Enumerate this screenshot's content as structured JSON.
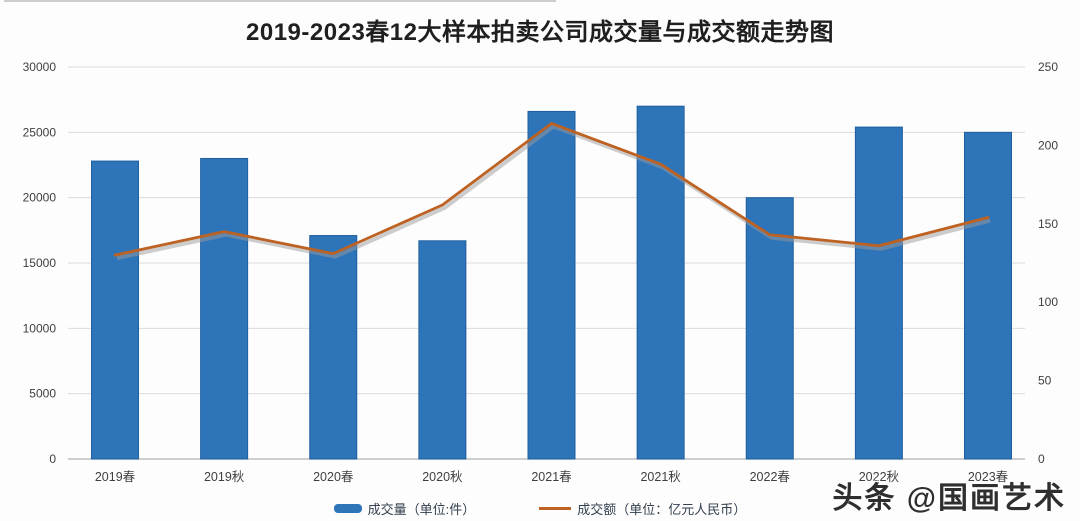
{
  "title": "2019-2023春12大样本拍卖公司成交量与成交额走势图",
  "chart_data": {
    "type": "bar",
    "subtype": "combo-bar-line-dual-axis",
    "title": "2019-2023春12大样本拍卖公司成交量与成交额走势图",
    "categories": [
      "2019春",
      "2019秋",
      "2020春",
      "2020秋",
      "2021春",
      "2021秋",
      "2022春",
      "2022秋",
      "2023春"
    ],
    "series": [
      {
        "name": "成交量（单位:件）",
        "kind": "bar",
        "axis": "left",
        "values": [
          22800,
          23000,
          17100,
          16700,
          26600,
          27000,
          20000,
          25400,
          25000
        ]
      },
      {
        "name": "成交额（单位：亿元人民币）",
        "kind": "line",
        "axis": "right",
        "values": [
          130,
          145,
          131,
          162,
          214,
          188,
          143,
          136,
          154
        ]
      }
    ],
    "left_axis": {
      "min": 0,
      "max": 30000,
      "step": 5000,
      "ticks": [
        "0",
        "5000",
        "10000",
        "15000",
        "20000",
        "25000",
        "30000"
      ]
    },
    "right_axis": {
      "min": 0,
      "max": 250,
      "step": 50,
      "ticks": [
        "0",
        "50",
        "100",
        "150",
        "200",
        "250"
      ]
    },
    "grid": true,
    "legend_position": "bottom"
  },
  "legend": {
    "volume_label": "成交量（单位:件）",
    "amount_label": "成交额（单位：亿元人民币）"
  },
  "watermark": {
    "text": "头条 @国画艺术"
  },
  "colors": {
    "bar": "#2e74b8",
    "bar_border": "#1f5fa0",
    "line": "#bd6222",
    "line_shadow": "#9b9b9b",
    "grid": "#dcdcdc",
    "axis": "#b3b3b3",
    "tick_text": "#404040",
    "title_text": "#1f1f1f",
    "legend_text": "#33404f",
    "watermark_text": "#2f2f2f",
    "background": "#fdfdfd"
  }
}
